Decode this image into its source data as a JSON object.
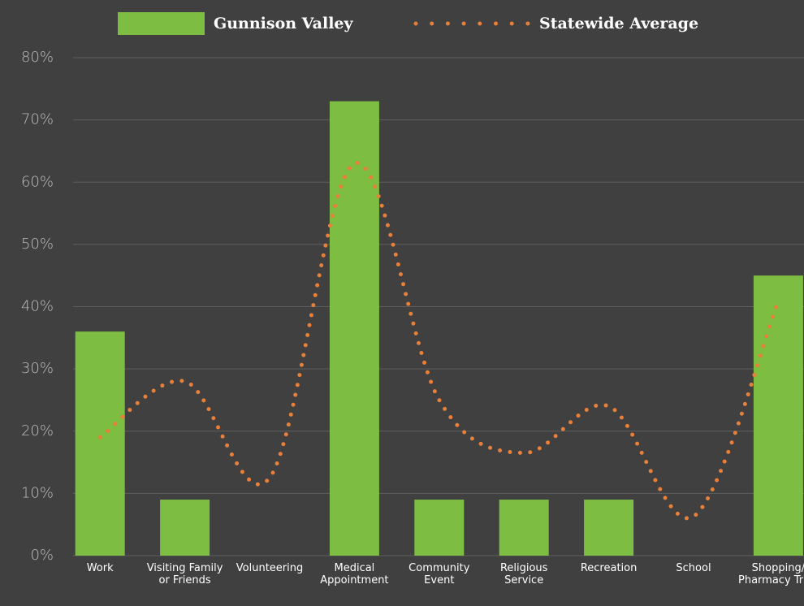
{
  "chart_data": {
    "type": "bar_line",
    "categories": [
      "Work",
      "Visiting Family or Friends",
      "Volunteering",
      "Medical Appointment",
      "Community Event",
      "Religious Service",
      "Recreation",
      "School",
      "Shopping/ Pharmacy Trips"
    ],
    "series": [
      {
        "name": "Gunnison Valley",
        "type": "bar",
        "color": "#7cbd42",
        "values": [
          36,
          9,
          0,
          73,
          9,
          9,
          9,
          0,
          45
        ]
      },
      {
        "name": "Statewide Average",
        "type": "line",
        "style": "dotted",
        "color": "#e8803a",
        "values": [
          19,
          28,
          12.5,
          63,
          25,
          16.5,
          24,
          6.3,
          41
        ]
      }
    ],
    "ylim": [
      0,
      80
    ],
    "yticks": [
      {
        "value": 0,
        "label": "0%"
      },
      {
        "value": 10,
        "label": "10%"
      },
      {
        "value": 20,
        "label": "20%"
      },
      {
        "value": 30,
        "label": "30%"
      },
      {
        "value": 40,
        "label": "40%"
      },
      {
        "value": 50,
        "label": "50%"
      },
      {
        "value": 60,
        "label": "60%"
      },
      {
        "value": 70,
        "label": "70%"
      },
      {
        "value": 80,
        "label": "80%"
      }
    ],
    "grid": true
  }
}
